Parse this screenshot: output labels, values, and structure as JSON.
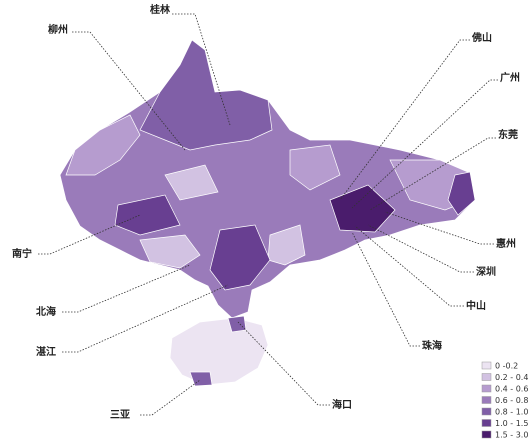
{
  "cities": {
    "guilin": "桂林",
    "liuzhou": "柳州",
    "foshan": "佛山",
    "guangzhou": "广州",
    "dongguan": "东莞",
    "huizhou": "惠州",
    "shenzhen": "深圳",
    "zhongshan": "中山",
    "zhuhai": "珠海",
    "haikou": "海口",
    "sanya": "三亚",
    "zhanjiang": "湛江",
    "beihai": "北海",
    "nanning": "南宁"
  },
  "legend": [
    {
      "label": "0 -0.2",
      "color": "#ece4f2"
    },
    {
      "label": "0.2 - 0.4",
      "color": "#d2c2e2"
    },
    {
      "label": "0.4 - 0.6",
      "color": "#b69ccf"
    },
    {
      "label": "0.6 - 0.8",
      "color": "#9a7bba"
    },
    {
      "label": "0.8 - 1.0",
      "color": "#805fa7"
    },
    {
      "label": "1.0 - 1.5",
      "color": "#683f91"
    },
    {
      "label": "1.5 - 3.0",
      "color": "#4a1c6c"
    }
  ]
}
